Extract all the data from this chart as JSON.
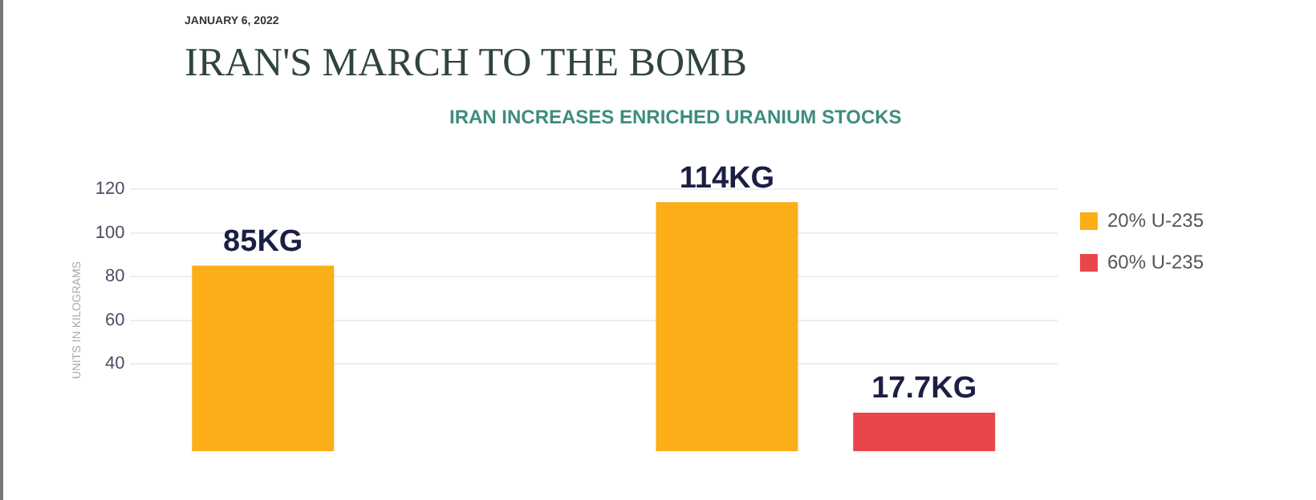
{
  "chart_data": {
    "type": "bar",
    "title": "IRAN'S MARCH TO THE BOMB",
    "subtitle": "IRAN INCREASES ENRICHED URANIUM STOCKS",
    "ylabel": "UNITS IN KILOGRAMS",
    "annotations": [
      "JANUARY 6, 2022"
    ],
    "categories": [
      null,
      null
    ],
    "series": [
      {
        "name": "20% U-235",
        "color": "#fbae17",
        "values": [
          85,
          114
        ],
        "value_labels": [
          "85KG",
          "114KG"
        ]
      },
      {
        "name": "60% U-235",
        "color": "#e8464b",
        "values": [
          null,
          17.7
        ],
        "value_labels": [
          null,
          "17.7KG"
        ]
      }
    ],
    "ylim": [
      0,
      120
    ],
    "yticks": [
      40,
      60,
      80,
      100,
      120
    ],
    "grid": "y",
    "legend": "right"
  }
}
